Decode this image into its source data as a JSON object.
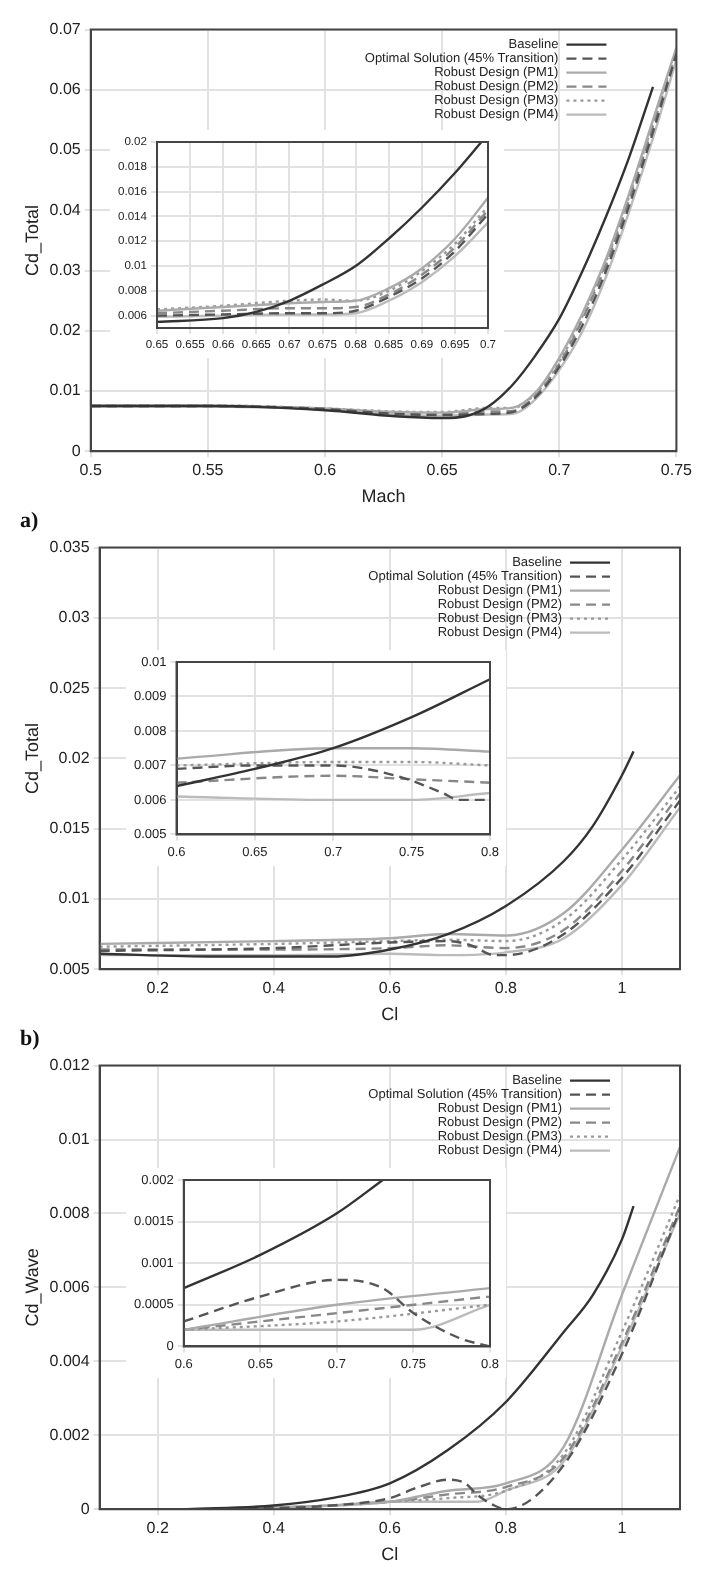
{
  "chart_data": [
    {
      "type": "line",
      "xlabel": "Mach",
      "ylabel": "Cd_Total",
      "annotations": [
        "a)"
      ],
      "xlim": [
        0.5,
        0.75
      ],
      "xticks": [
        0.5,
        0.55,
        0.6,
        0.65,
        0.7,
        0.75
      ],
      "ylim": [
        0,
        0.07
      ],
      "yticks": [
        0,
        0.01,
        0.02,
        0.03,
        0.04,
        0.05,
        0.06,
        0.07
      ],
      "grid": true,
      "legend": "top right",
      "marker": "none",
      "series": [
        {
          "name": "Baseline",
          "color": "#333333",
          "line_style": "solid",
          "x": [
            0.5,
            0.55,
            0.6,
            0.63,
            0.65,
            0.66,
            0.67,
            0.68,
            0.69,
            0.7,
            0.71,
            0.72,
            0.73,
            0.74
          ],
          "values": [
            0.0075,
            0.0075,
            0.0068,
            0.0058,
            0.0055,
            0.0058,
            0.0075,
            0.011,
            0.016,
            0.022,
            0.03,
            0.039,
            0.049,
            0.0605
          ]
        },
        {
          "name": "Optimal Solution (45% Transition)",
          "color": "#555555",
          "line_style": "dashed",
          "x": [
            0.5,
            0.55,
            0.6,
            0.63,
            0.65,
            0.67,
            0.68,
            0.69,
            0.7,
            0.71,
            0.72,
            0.73,
            0.74,
            0.75
          ],
          "values": [
            0.0075,
            0.0075,
            0.007,
            0.0062,
            0.006,
            0.0062,
            0.0065,
            0.009,
            0.014,
            0.021,
            0.03,
            0.041,
            0.053,
            0.066
          ]
        },
        {
          "name": "Robust Design (PM1)",
          "color": "#aaaaaa",
          "line_style": "solid",
          "x": [
            0.5,
            0.55,
            0.6,
            0.63,
            0.65,
            0.67,
            0.68,
            0.69,
            0.7,
            0.71,
            0.72,
            0.73,
            0.74,
            0.75
          ],
          "values": [
            0.0076,
            0.0076,
            0.0071,
            0.0065,
            0.0064,
            0.007,
            0.0072,
            0.0098,
            0.0155,
            0.023,
            0.032,
            0.043,
            0.055,
            0.067
          ]
        },
        {
          "name": "Robust Design (PM2)",
          "color": "#888888",
          "line_style": "dashed",
          "x": [
            0.5,
            0.55,
            0.6,
            0.63,
            0.65,
            0.67,
            0.68,
            0.69,
            0.7,
            0.71,
            0.72,
            0.73,
            0.74,
            0.75
          ],
          "values": [
            0.0075,
            0.0075,
            0.007,
            0.0064,
            0.0062,
            0.0066,
            0.0067,
            0.0093,
            0.0145,
            0.022,
            0.031,
            0.042,
            0.054,
            0.0665
          ]
        },
        {
          "name": "Robust Design (PM3)",
          "color": "#999999",
          "line_style": "dotted",
          "x": [
            0.5,
            0.55,
            0.6,
            0.63,
            0.65,
            0.67,
            0.68,
            0.69,
            0.7,
            0.71,
            0.72,
            0.73,
            0.74,
            0.75
          ],
          "values": [
            0.0076,
            0.0076,
            0.0071,
            0.0066,
            0.0065,
            0.0072,
            0.0072,
            0.0096,
            0.0148,
            0.0225,
            0.0315,
            0.0425,
            0.0545,
            0.0668
          ]
        },
        {
          "name": "Robust Design (PM4)",
          "color": "#bbbbbb",
          "line_style": "solid",
          "x": [
            0.5,
            0.55,
            0.6,
            0.63,
            0.65,
            0.67,
            0.68,
            0.69,
            0.7,
            0.71,
            0.72,
            0.73,
            0.74,
            0.75
          ],
          "values": [
            0.0074,
            0.0074,
            0.0069,
            0.0061,
            0.0059,
            0.0061,
            0.0062,
            0.0087,
            0.0135,
            0.02,
            0.029,
            0.04,
            0.052,
            0.065
          ]
        }
      ]
    },
    {
      "type": "line",
      "xlim": [
        0.65,
        0.7
      ],
      "xticks": [
        0.65,
        0.655,
        0.66,
        0.665,
        0.67,
        0.675,
        0.68,
        0.685,
        0.69,
        0.695,
        0.7
      ],
      "ylim": [
        0.005,
        0.02
      ],
      "yticks": [
        0.006,
        0.008,
        0.01,
        0.012,
        0.014,
        0.016,
        0.018,
        0.02
      ],
      "grid": true,
      "marker": "none",
      "series": [
        {
          "color": "#333333",
          "line_style": "solid",
          "x": [
            0.65,
            0.66,
            0.665,
            0.67,
            0.675,
            0.68,
            0.685,
            0.69,
            0.695,
            0.699
          ],
          "values": [
            0.0055,
            0.0058,
            0.0063,
            0.0072,
            0.0085,
            0.01,
            0.0122,
            0.0147,
            0.0175,
            0.02
          ]
        },
        {
          "color": "#555555",
          "line_style": "dashed",
          "x": [
            0.65,
            0.66,
            0.67,
            0.675,
            0.68,
            0.685,
            0.69,
            0.695,
            0.7
          ],
          "values": [
            0.006,
            0.0061,
            0.0062,
            0.0062,
            0.0064,
            0.0075,
            0.009,
            0.0112,
            0.0142
          ]
        },
        {
          "color": "#aaaaaa",
          "line_style": "solid",
          "x": [
            0.65,
            0.66,
            0.67,
            0.675,
            0.68,
            0.685,
            0.69,
            0.695,
            0.7
          ],
          "values": [
            0.0064,
            0.0067,
            0.007,
            0.0071,
            0.0072,
            0.0082,
            0.0098,
            0.0122,
            0.0155
          ]
        },
        {
          "color": "#888888",
          "line_style": "dashed",
          "x": [
            0.65,
            0.66,
            0.67,
            0.675,
            0.68,
            0.685,
            0.69,
            0.695,
            0.7
          ],
          "values": [
            0.0062,
            0.0064,
            0.0066,
            0.0066,
            0.0067,
            0.0077,
            0.0093,
            0.0115,
            0.0145
          ]
        },
        {
          "color": "#999999",
          "line_style": "dotted",
          "x": [
            0.65,
            0.66,
            0.67,
            0.675,
            0.68,
            0.685,
            0.69,
            0.695,
            0.7
          ],
          "values": [
            0.0065,
            0.0068,
            0.0072,
            0.0073,
            0.0072,
            0.008,
            0.0096,
            0.0118,
            0.0148
          ]
        },
        {
          "color": "#bbbbbb",
          "line_style": "solid",
          "x": [
            0.65,
            0.66,
            0.67,
            0.675,
            0.68,
            0.685,
            0.69,
            0.695,
            0.7
          ],
          "values": [
            0.0059,
            0.006,
            0.0061,
            0.0061,
            0.0062,
            0.0072,
            0.0087,
            0.0108,
            0.0135
          ]
        }
      ]
    },
    {
      "type": "line",
      "xlabel": "Cl",
      "ylabel": "Cd_Total",
      "annotations": [
        "b)"
      ],
      "xlim": [
        0.1,
        1.1
      ],
      "xticks": [
        0.2,
        0.4,
        0.6,
        0.8,
        1
      ],
      "ylim": [
        0.005,
        0.035
      ],
      "yticks": [
        0.005,
        0.01,
        0.015,
        0.02,
        0.025,
        0.03,
        0.035
      ],
      "grid": true,
      "legend": "top right",
      "marker": "none",
      "series": [
        {
          "name": "Baseline",
          "color": "#333333",
          "line_style": "solid",
          "x": [
            0.1,
            0.3,
            0.5,
            0.6,
            0.7,
            0.8,
            0.9,
            0.95,
            1,
            1.02
          ],
          "values": [
            0.0061,
            0.0059,
            0.0059,
            0.0064,
            0.0075,
            0.0095,
            0.0127,
            0.0152,
            0.0188,
            0.0205
          ]
        },
        {
          "name": "Optimal Solution (45% Transition)",
          "color": "#555555",
          "line_style": "dashed",
          "x": [
            0.1,
            0.4,
            0.6,
            0.7,
            0.74,
            0.78,
            0.8,
            0.9,
            1,
            1.1
          ],
          "values": [
            0.0063,
            0.0065,
            0.0069,
            0.007,
            0.0067,
            0.006,
            0.006,
            0.0075,
            0.0115,
            0.017
          ]
        },
        {
          "name": "Robust Design (PM1)",
          "color": "#aaaaaa",
          "line_style": "solid",
          "x": [
            0.1,
            0.4,
            0.6,
            0.7,
            0.8,
            0.9,
            1,
            1.1
          ],
          "values": [
            0.0068,
            0.007,
            0.0072,
            0.0075,
            0.0074,
            0.009,
            0.0135,
            0.0188
          ]
        },
        {
          "name": "Robust Design (PM2)",
          "color": "#888888",
          "line_style": "dashed",
          "x": [
            0.1,
            0.4,
            0.6,
            0.7,
            0.8,
            0.9,
            1,
            1.1
          ],
          "values": [
            0.0064,
            0.0064,
            0.0065,
            0.0067,
            0.0065,
            0.0078,
            0.012,
            0.0175
          ]
        },
        {
          "name": "Robust Design (PM3)",
          "color": "#999999",
          "line_style": "dotted",
          "x": [
            0.1,
            0.4,
            0.6,
            0.7,
            0.8,
            0.9,
            1,
            1.1
          ],
          "values": [
            0.0066,
            0.0068,
            0.007,
            0.0071,
            0.007,
            0.0085,
            0.0128,
            0.018
          ]
        },
        {
          "name": "Robust Design (PM4)",
          "color": "#bbbbbb",
          "line_style": "solid",
          "x": [
            0.1,
            0.4,
            0.6,
            0.7,
            0.8,
            0.9,
            1,
            1.1
          ],
          "values": [
            0.006,
            0.006,
            0.0061,
            0.006,
            0.0062,
            0.0072,
            0.011,
            0.0165
          ]
        }
      ]
    },
    {
      "type": "line",
      "xlim": [
        0.6,
        0.8
      ],
      "xticks": [
        0.6,
        0.65,
        0.7,
        0.75,
        0.8
      ],
      "ylim": [
        0.005,
        0.01
      ],
      "yticks": [
        0.005,
        0.006,
        0.007,
        0.008,
        0.009,
        0.01
      ],
      "grid": true,
      "marker": "none",
      "series": [
        {
          "color": "#333333",
          "line_style": "solid",
          "x": [
            0.6,
            0.65,
            0.7,
            0.75,
            0.8
          ],
          "values": [
            0.0064,
            0.0069,
            0.0075,
            0.0084,
            0.0095
          ]
        },
        {
          "color": "#555555",
          "line_style": "dashed",
          "x": [
            0.6,
            0.65,
            0.7,
            0.74,
            0.77,
            0.78,
            0.8
          ],
          "values": [
            0.0069,
            0.007,
            0.007,
            0.0067,
            0.0062,
            0.006,
            0.006
          ]
        },
        {
          "color": "#aaaaaa",
          "line_style": "solid",
          "x": [
            0.6,
            0.7,
            0.75,
            0.8
          ],
          "values": [
            0.0072,
            0.0075,
            0.0075,
            0.0074
          ]
        },
        {
          "color": "#888888",
          "line_style": "dashed",
          "x": [
            0.6,
            0.7,
            0.75,
            0.8
          ],
          "values": [
            0.0065,
            0.0067,
            0.0066,
            0.0065
          ]
        },
        {
          "color": "#999999",
          "line_style": "dotted",
          "x": [
            0.6,
            0.7,
            0.75,
            0.8
          ],
          "values": [
            0.007,
            0.0071,
            0.0071,
            0.007
          ]
        },
        {
          "color": "#bbbbbb",
          "line_style": "solid",
          "x": [
            0.6,
            0.7,
            0.75,
            0.8
          ],
          "values": [
            0.0061,
            0.006,
            0.006,
            0.0062
          ]
        }
      ]
    },
    {
      "type": "line",
      "xlabel": "Cl",
      "ylabel": "Cd_Wave",
      "xlim": [
        0.1,
        1.1
      ],
      "xticks": [
        0.2,
        0.4,
        0.6,
        0.8,
        1
      ],
      "ylim": [
        0,
        0.012
      ],
      "yticks": [
        0,
        0.002,
        0.004,
        0.006,
        0.008,
        0.01,
        0.012
      ],
      "grid": true,
      "legend": "top right",
      "marker": "none",
      "series": [
        {
          "name": "Baseline",
          "color": "#333333",
          "line_style": "solid",
          "x": [
            0.25,
            0.4,
            0.5,
            0.6,
            0.7,
            0.8,
            0.9,
            0.95,
            1,
            1.02
          ],
          "values": [
            0,
            0.0001,
            0.0003,
            0.0007,
            0.0016,
            0.0029,
            0.0048,
            0.0058,
            0.0073,
            0.0082
          ]
        },
        {
          "name": "Optimal Solution (45% Transition)",
          "color": "#555555",
          "line_style": "dashed",
          "x": [
            0.3,
            0.5,
            0.6,
            0.65,
            0.7,
            0.73,
            0.75,
            0.78,
            0.8,
            0.9,
            1,
            1.1
          ],
          "values": [
            0,
            0.0001,
            0.0003,
            0.0006,
            0.0008,
            0.0007,
            0.0004,
            0.0001,
            0,
            0.0012,
            0.0042,
            0.0081
          ]
        },
        {
          "name": "Robust Design (PM1)",
          "color": "#aaaaaa",
          "line_style": "solid",
          "x": [
            0.3,
            0.5,
            0.6,
            0.7,
            0.8,
            0.9,
            1,
            1.1
          ],
          "values": [
            0,
            0.0001,
            0.0002,
            0.0005,
            0.0007,
            0.0017,
            0.0058,
            0.0098
          ]
        },
        {
          "name": "Robust Design (PM2)",
          "color": "#888888",
          "line_style": "dashed",
          "x": [
            0.3,
            0.5,
            0.6,
            0.7,
            0.8,
            0.9,
            1,
            1.1
          ],
          "values": [
            0,
            0.0001,
            0.0002,
            0.0004,
            0.0006,
            0.0014,
            0.0045,
            0.0082
          ]
        },
        {
          "name": "Robust Design (PM3)",
          "color": "#999999",
          "line_style": "dotted",
          "x": [
            0.3,
            0.5,
            0.6,
            0.7,
            0.8,
            0.9,
            1,
            1.1
          ],
          "values": [
            0,
            0.0001,
            0.0002,
            0.0003,
            0.0005,
            0.0015,
            0.0048,
            0.0085
          ]
        },
        {
          "name": "Robust Design (PM4)",
          "color": "#bbbbbb",
          "line_style": "solid",
          "x": [
            0.3,
            0.5,
            0.6,
            0.65,
            0.7,
            0.75,
            0.8,
            0.9,
            1,
            1.1
          ],
          "values": [
            0,
            0.0001,
            0.0002,
            0.0002,
            0.0002,
            0.0002,
            0.0005,
            0.0013,
            0.0044,
            0.008
          ]
        }
      ]
    },
    {
      "type": "line",
      "xlim": [
        0.6,
        0.8
      ],
      "xticks": [
        0.6,
        0.65,
        0.7,
        0.75,
        0.8
      ],
      "ylim": [
        0,
        0.002
      ],
      "yticks": [
        0,
        0.0005,
        0.001,
        0.0015,
        0.002
      ],
      "grid": true,
      "marker": "none",
      "series": [
        {
          "color": "#333333",
          "line_style": "solid",
          "x": [
            0.6,
            0.65,
            0.7,
            0.73
          ],
          "values": [
            0.0007,
            0.0011,
            0.0016,
            0.002
          ]
        },
        {
          "color": "#555555",
          "line_style": "dashed",
          "x": [
            0.6,
            0.65,
            0.7,
            0.73,
            0.75,
            0.78,
            0.8
          ],
          "values": [
            0.0003,
            0.0006,
            0.0008,
            0.0007,
            0.0004,
            0.0001,
            0
          ]
        },
        {
          "color": "#aaaaaa",
          "line_style": "solid",
          "x": [
            0.6,
            0.7,
            0.8
          ],
          "values": [
            0.0002,
            0.0005,
            0.0007
          ]
        },
        {
          "color": "#888888",
          "line_style": "dashed",
          "x": [
            0.6,
            0.7,
            0.8
          ],
          "values": [
            0.0002,
            0.0004,
            0.0006
          ]
        },
        {
          "color": "#999999",
          "line_style": "dotted",
          "x": [
            0.6,
            0.7,
            0.8
          ],
          "values": [
            0.0002,
            0.0003,
            0.0005
          ]
        },
        {
          "color": "#bbbbbb",
          "line_style": "solid",
          "x": [
            0.6,
            0.65,
            0.7,
            0.75,
            0.8
          ],
          "values": [
            0.0002,
            0.0002,
            0.0002,
            0.0002,
            0.0005
          ]
        }
      ]
    }
  ]
}
